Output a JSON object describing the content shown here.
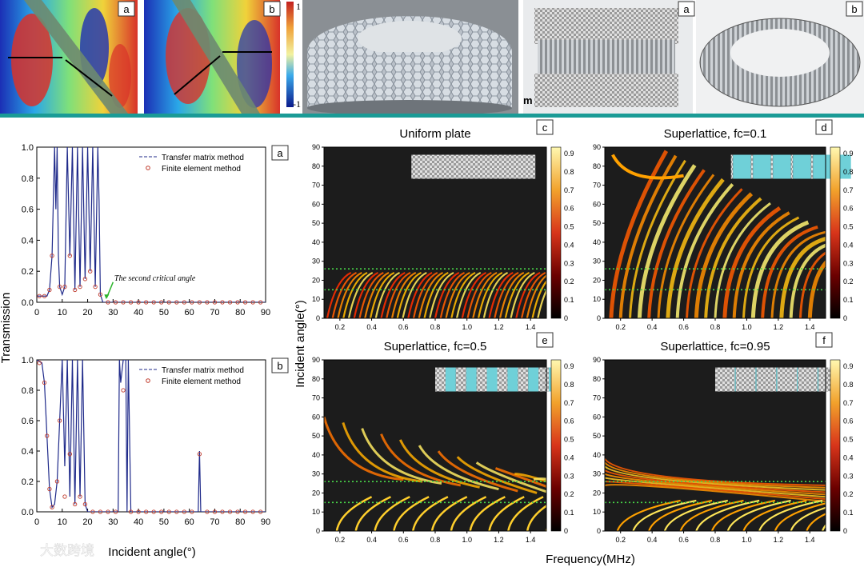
{
  "top_strip": {
    "panel_tags": [
      "a",
      "b",
      "a",
      "b"
    ],
    "colorbar_max": "1",
    "colorbar_min": "-1",
    "fragment_label": "m"
  },
  "transmission_plots": {
    "shared_ylabel": "Transmission",
    "shared_xlabel": "Incident angle(°)",
    "annotation": "The second critical angle"
  },
  "heatmaps": {
    "shared_ylabel": "Incident angle(°)",
    "shared_xlabel": "Frequency(MHz)",
    "colorbar_ticks": [
      "0",
      "0.1",
      "0.2",
      "0.3",
      "0.4",
      "0.5",
      "0.6",
      "0.7",
      "0.8",
      "0.9"
    ]
  },
  "watermark": "大数跨境",
  "chart_data": [
    {
      "type": "line",
      "tag": "a",
      "xlim": [
        0,
        90
      ],
      "ylim": [
        0,
        1
      ],
      "xticks": [
        0,
        10,
        20,
        30,
        40,
        50,
        60,
        70,
        80,
        90
      ],
      "yticks": [
        0.0,
        0.2,
        0.4,
        0.6,
        0.8,
        1.0
      ],
      "series": [
        {
          "name": "Transfer matrix method",
          "color": "#1f2a8a",
          "x": [
            0,
            4,
            5,
            6,
            7,
            7.5,
            8,
            8.5,
            9,
            10,
            11,
            12,
            13,
            14,
            15,
            16,
            17,
            18,
            19,
            20,
            21,
            22,
            23,
            24,
            24.5,
            25,
            26,
            30,
            40,
            50,
            60,
            70,
            80,
            90
          ],
          "y": [
            0.04,
            0.04,
            0.08,
            0.3,
            1.0,
            0.6,
            1.0,
            0.3,
            0.1,
            0.05,
            0.1,
            1.0,
            0.3,
            1.0,
            0.08,
            1.0,
            0.1,
            1.0,
            0.15,
            1.0,
            0.2,
            1.0,
            0.1,
            1.0,
            0.65,
            0.05,
            0.0,
            0.0,
            0.0,
            0.0,
            0.0,
            0.0,
            0.0,
            0.0
          ]
        },
        {
          "name": "Finite element method",
          "color": "#c0392b",
          "x": [
            1,
            3,
            5,
            6,
            9,
            11,
            13,
            15,
            17,
            19,
            21,
            23,
            25,
            28,
            31,
            34,
            37,
            40,
            43,
            46,
            49,
            52,
            55,
            58,
            61,
            64,
            67,
            70,
            73,
            76,
            79,
            82,
            85,
            88
          ],
          "y": [
            0.04,
            0.04,
            0.08,
            0.3,
            0.1,
            0.1,
            0.3,
            0.08,
            0.1,
            0.15,
            0.2,
            0.1,
            0.05,
            0.0,
            0.0,
            0.0,
            0.0,
            0.0,
            0.0,
            0.0,
            0.0,
            0.0,
            0.0,
            0.0,
            0.0,
            0.0,
            0.0,
            0.0,
            0.0,
            0.0,
            0.0,
            0.0,
            0.0,
            0.0
          ]
        }
      ]
    },
    {
      "type": "line",
      "tag": "b",
      "xlim": [
        0,
        90
      ],
      "ylim": [
        0,
        1
      ],
      "xticks": [
        0,
        10,
        20,
        30,
        40,
        50,
        60,
        70,
        80,
        90
      ],
      "yticks": [
        0.0,
        0.2,
        0.4,
        0.6,
        0.8,
        1.0
      ],
      "series": [
        {
          "name": "Transfer matrix method",
          "color": "#1f2a8a",
          "x": [
            0,
            2,
            3,
            4,
            5,
            6,
            7,
            8,
            9,
            10,
            11,
            12,
            13,
            14,
            15,
            16,
            17,
            18,
            19,
            20,
            25,
            32,
            32.5,
            33,
            34,
            35,
            35.5,
            36,
            37,
            40,
            50,
            60,
            63.5,
            64,
            64.5,
            70,
            80,
            90
          ],
          "y": [
            1.0,
            0.98,
            0.85,
            0.5,
            0.15,
            0.03,
            0.05,
            0.2,
            0.6,
            1.0,
            0.3,
            1.0,
            0.1,
            1.0,
            0.05,
            1.0,
            0.1,
            1.0,
            0.05,
            0.0,
            0.0,
            0.0,
            1.0,
            0.85,
            1.0,
            1.0,
            0.0,
            1.0,
            0.0,
            0.0,
            0.0,
            0.0,
            0.0,
            0.4,
            0.0,
            0.0,
            0.0,
            0.0
          ]
        },
        {
          "name": "Finite element method",
          "color": "#c0392b",
          "x": [
            1,
            3,
            4,
            5,
            6,
            8,
            9,
            11,
            13,
            15,
            17,
            19,
            22,
            25,
            28,
            31,
            34,
            37,
            40,
            43,
            46,
            49,
            52,
            55,
            58,
            61,
            64,
            67,
            70,
            73,
            76,
            79,
            82,
            85,
            88
          ],
          "y": [
            0.98,
            0.85,
            0.5,
            0.15,
            0.03,
            0.2,
            0.6,
            0.1,
            0.38,
            0.05,
            0.1,
            0.05,
            0.0,
            0.0,
            0.0,
            0.0,
            0.8,
            0.0,
            0.0,
            0.0,
            0.0,
            0.0,
            0.0,
            0.0,
            0.0,
            0.0,
            0.38,
            0.0,
            0.0,
            0.0,
            0.0,
            0.0,
            0.0,
            0.0,
            0.0
          ]
        }
      ]
    },
    {
      "type": "heatmap",
      "tag": "c",
      "title": "Uniform plate",
      "xlim": [
        0.1,
        1.5
      ],
      "ylim": [
        0,
        90
      ],
      "xticks": [
        0.2,
        0.4,
        0.6,
        0.8,
        1.0,
        1.2,
        1.4
      ],
      "yticks": [
        0,
        10,
        20,
        30,
        40,
        50,
        60,
        70,
        80,
        90
      ],
      "guide_lines": [
        26,
        15
      ],
      "clim": [
        0,
        0.9
      ]
    },
    {
      "type": "heatmap",
      "tag": "d",
      "title": "Superlattice, fc=0.1",
      "xlim": [
        0.1,
        1.5
      ],
      "ylim": [
        0,
        90
      ],
      "xticks": [
        0.2,
        0.4,
        0.6,
        0.8,
        1.0,
        1.2,
        1.4
      ],
      "yticks": [
        0,
        10,
        20,
        30,
        40,
        50,
        60,
        70,
        80,
        90
      ],
      "guide_lines": [
        26,
        15
      ],
      "clim": [
        0,
        0.9
      ]
    },
    {
      "type": "heatmap",
      "tag": "e",
      "title": "Superlattice, fc=0.5",
      "xlim": [
        0.1,
        1.5
      ],
      "ylim": [
        0,
        90
      ],
      "xticks": [
        0.2,
        0.4,
        0.6,
        0.8,
        1.0,
        1.2,
        1.4
      ],
      "yticks": [
        0,
        10,
        20,
        30,
        40,
        50,
        60,
        70,
        80,
        90
      ],
      "guide_lines": [
        26,
        15
      ],
      "clim": [
        0,
        0.9
      ]
    },
    {
      "type": "heatmap",
      "tag": "f",
      "title": "Superlattice, fc=0.95",
      "xlim": [
        0.1,
        1.5
      ],
      "ylim": [
        0,
        90
      ],
      "xticks": [
        0.2,
        0.4,
        0.6,
        0.8,
        1.0,
        1.2,
        1.4
      ],
      "yticks": [
        0,
        10,
        20,
        30,
        40,
        50,
        60,
        70,
        80,
        90
      ],
      "guide_lines": [
        26,
        15
      ],
      "clim": [
        0,
        0.9
      ]
    }
  ]
}
